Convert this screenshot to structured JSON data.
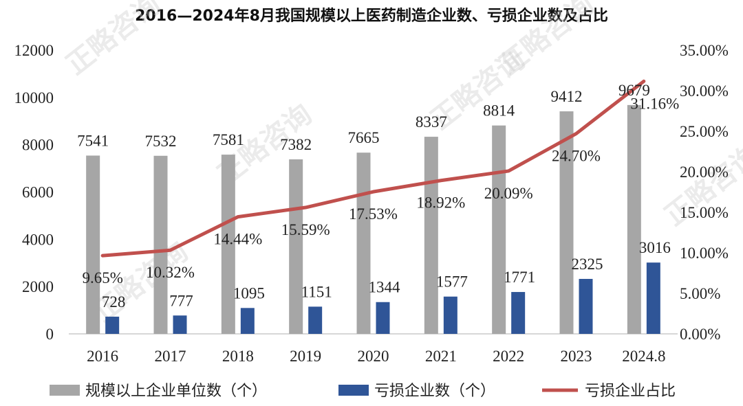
{
  "chart_data": {
    "type": "bar",
    "title": "2016—2024年8月我国规模以上医药制造企业数、亏损企业数及占比",
    "categories": [
      "2016",
      "2017",
      "2018",
      "2019",
      "2020",
      "2021",
      "2022",
      "2023",
      "2024.8"
    ],
    "series": [
      {
        "name": "规模以上企业单位数（个）",
        "type": "bar",
        "axis": "left",
        "color": "#a6a6a6",
        "values": [
          7541,
          7532,
          7581,
          7382,
          7665,
          8337,
          8814,
          9412,
          9679
        ],
        "labels": [
          "7541",
          "7532",
          "7581",
          "7382",
          "7665",
          "8337",
          "8814",
          "9412",
          "9679"
        ]
      },
      {
        "name": "亏损企业数（个）",
        "type": "bar",
        "axis": "left",
        "color": "#2f5597",
        "values": [
          728,
          777,
          1095,
          1151,
          1344,
          1577,
          1771,
          2325,
          3016
        ],
        "labels": [
          "728",
          "777",
          "1095",
          "1151",
          "1344",
          "1577",
          "1771",
          "2325",
          "3016"
        ]
      },
      {
        "name": "亏损企业占比",
        "type": "line",
        "axis": "right",
        "color": "#c0504d",
        "values": [
          9.65,
          10.32,
          14.44,
          15.59,
          17.53,
          18.92,
          20.09,
          24.7,
          31.16
        ],
        "labels": [
          "9.65%",
          "10.32%",
          "14.44%",
          "15.59%",
          "17.53%",
          "18.92%",
          "20.09%",
          "24.70%",
          "31.16%"
        ]
      }
    ],
    "y_left": {
      "min": 0,
      "max": 12000,
      "ticks": [
        0,
        2000,
        4000,
        6000,
        8000,
        10000,
        12000
      ],
      "tick_labels": [
        "0",
        "2000",
        "4000",
        "6000",
        "8000",
        "10000",
        "12000"
      ]
    },
    "y_right": {
      "min": 0,
      "max": 35,
      "ticks": [
        0,
        5,
        10,
        15,
        20,
        25,
        30,
        35
      ],
      "tick_labels": [
        "0.00%",
        "5.00%",
        "10.00%",
        "15.00%",
        "20.00%",
        "25.00%",
        "30.00%",
        "35.00%"
      ]
    },
    "grid": false,
    "legend_position": "bottom"
  },
  "watermark": "正略咨询"
}
